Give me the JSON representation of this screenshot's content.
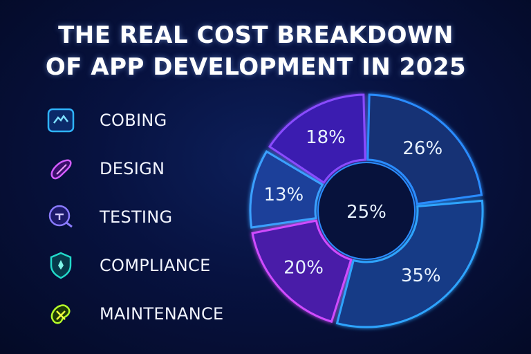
{
  "title": {
    "line1": "THE REAL COST BREAKDOWN",
    "line2": "OF APP DEVELOPMENT IN 2025"
  },
  "legend": [
    {
      "label": "COBING",
      "icon": "code-box-icon",
      "color": "#2fb4ff"
    },
    {
      "label": "DESIGN",
      "icon": "brush-icon",
      "color": "#c452ff"
    },
    {
      "label": "TESTING",
      "icon": "magnifier-icon",
      "color": "#7a6bff"
    },
    {
      "label": "COMPLIANCE",
      "icon": "shield-icon",
      "color": "#22d9c9"
    },
    {
      "label": "MAINTENANCE",
      "icon": "gear-icon",
      "color": "#b6ff2a"
    }
  ],
  "chart_data": {
    "type": "pie",
    "style": "donut",
    "slices": [
      {
        "label": "26%",
        "value": 26,
        "fill": "#123274",
        "stroke": "#2b8cff"
      },
      {
        "label": "35%",
        "value": 35,
        "fill": "#143a86",
        "stroke": "#2fa4ff"
      },
      {
        "label": "20%",
        "value": 20,
        "fill": "#4a1aa8",
        "stroke": "#d04bff"
      },
      {
        "label": "13%",
        "value": 13,
        "fill": "#1a3f9a",
        "stroke": "#3aa0ff"
      },
      {
        "label": "18%",
        "value": 18,
        "fill": "#3a1fb0",
        "stroke": "#8a4cff"
      }
    ],
    "center_label": "25%",
    "center_fill": "#07123c"
  }
}
